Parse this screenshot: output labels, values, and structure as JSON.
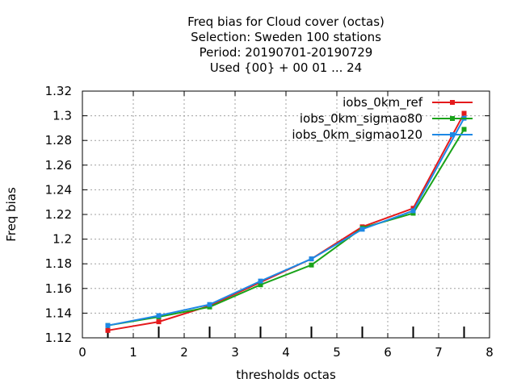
{
  "chart_data": {
    "type": "line",
    "title_lines": [
      "Freq bias  for Cloud cover (octas)",
      "Selection: Sweden    100 stations",
      "Period: 20190701-20190729",
      "Used {00} + 00 01 ... 24"
    ],
    "xlabel": "thresholds octas",
    "ylabel": "Freq bias",
    "xlim": [
      0,
      8
    ],
    "ylim": [
      1.12,
      1.32
    ],
    "x_ticks": [
      "0",
      "1",
      "2",
      "3",
      "4",
      "5",
      "6",
      "7",
      "8"
    ],
    "y_ticks": [
      "1.12",
      "1.14",
      "1.16",
      "1.18",
      "1.2",
      "1.22",
      "1.24",
      "1.26",
      "1.28",
      "1.3",
      "1.32"
    ],
    "grid": true,
    "legend_position": "top-right",
    "x": [
      0.5,
      1.5,
      2.5,
      3.5,
      4.5,
      5.5,
      6.5,
      7.5
    ],
    "series": [
      {
        "name": "iobs_0km_ref",
        "color": "#e41a1c",
        "values": [
          1.126,
          1.133,
          1.146,
          1.165,
          1.184,
          1.21,
          1.225,
          1.302
        ]
      },
      {
        "name": "iobs_0km_sigmao80",
        "color": "#1aa31a",
        "values": [
          1.13,
          1.137,
          1.145,
          1.163,
          1.179,
          1.209,
          1.221,
          1.289
        ]
      },
      {
        "name": "iobs_0km_sigmao120",
        "color": "#1e88e5",
        "values": [
          1.13,
          1.138,
          1.147,
          1.166,
          1.184,
          1.208,
          1.223,
          1.298
        ]
      }
    ]
  }
}
